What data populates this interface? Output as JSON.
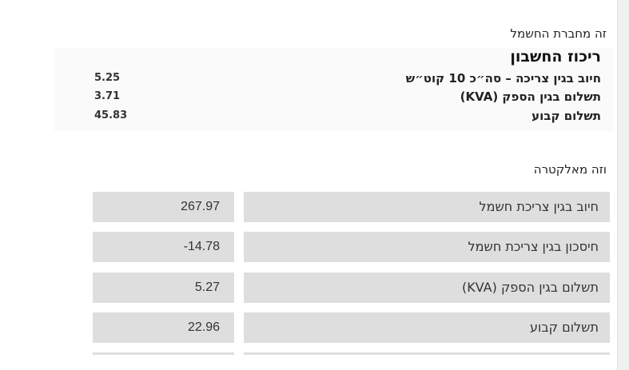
{
  "electric_company": {
    "caption": "זה מחברת החשמל",
    "summary_title": "ריכוז החשבון",
    "rows": [
      {
        "label": "חיוב בגין צריכה – סה״כ 10 קוט״ש",
        "value": "5.25"
      },
      {
        "label": "תשלום בגין הספק (KVA)",
        "value": "3.71"
      },
      {
        "label": "תשלום קבוע",
        "value": "45.83"
      }
    ]
  },
  "electra": {
    "caption": "וזה מאלקטרה",
    "rows": [
      {
        "label": "חיוב בגין צריכת חשמל",
        "value": "267.97"
      },
      {
        "label": "חיסכון בגין צריכת חשמל",
        "value": "-14.78"
      },
      {
        "label": "תשלום בגין הספק (KVA)",
        "value": "5.27"
      },
      {
        "label": "תשלום קבוע",
        "value": "22.96"
      }
    ]
  }
}
